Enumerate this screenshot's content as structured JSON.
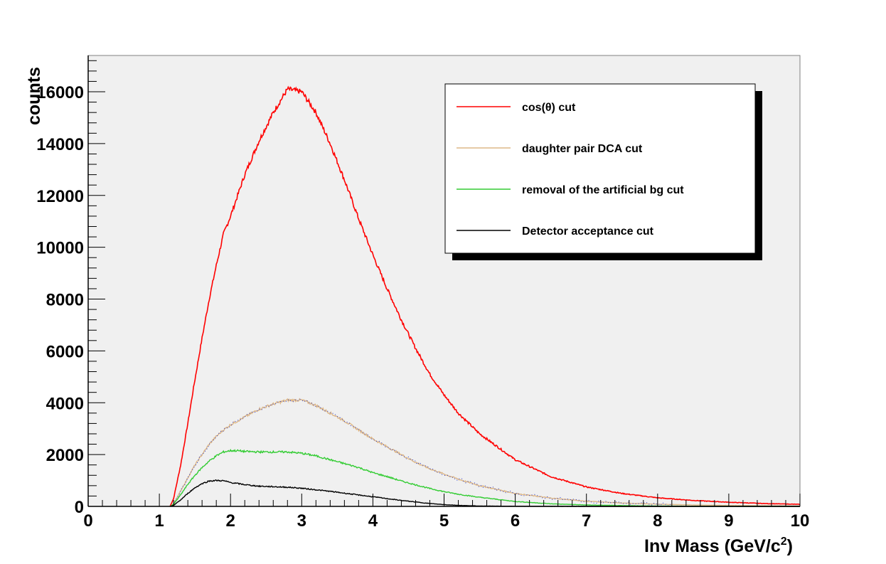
{
  "chart_data": {
    "type": "line",
    "title": "",
    "xlabel": "Inv Mass (GeV/c",
    "xlabel_superscript": "2",
    "xlabel_suffix": ")",
    "ylabel": "counts",
    "xlim": [
      0,
      10
    ],
    "ylim": [
      0,
      17400
    ],
    "x_ticks": [
      "0",
      "1",
      "2",
      "3",
      "4",
      "5",
      "6",
      "7",
      "8",
      "9",
      "10"
    ],
    "y_ticks": [
      "0",
      "2000",
      "4000",
      "6000",
      "8000",
      "10000",
      "12000",
      "14000",
      "16000"
    ],
    "grid": false,
    "legend_position": "top-right",
    "frame_color": "#f0f0f0",
    "x": [
      1.0,
      1.15,
      1.2,
      1.3,
      1.4,
      1.5,
      1.6,
      1.7,
      1.8,
      1.9,
      2.0,
      2.1,
      2.2,
      2.4,
      2.6,
      2.8,
      3.0,
      3.2,
      3.4,
      3.6,
      3.8,
      4.0,
      4.2,
      4.4,
      4.6,
      4.8,
      5.0,
      5.2,
      5.5,
      6.0,
      6.5,
      7.0,
      7.5,
      8.0,
      8.5,
      9.0,
      9.5,
      10.0
    ],
    "series": [
      {
        "name": "cos(θ) cut",
        "color": "#ff0000",
        "values": [
          0,
          0,
          300,
          1600,
          3200,
          4900,
          6500,
          8000,
          9300,
          10500,
          11200,
          12000,
          12800,
          14100,
          15200,
          16100,
          16000,
          15200,
          14000,
          12600,
          11100,
          9700,
          8400,
          7200,
          6100,
          5100,
          4300,
          3600,
          2800,
          1800,
          1150,
          750,
          500,
          330,
          230,
          160,
          110,
          80
        ]
      },
      {
        "name": "daughter pair DCA cut",
        "color": "#deb887",
        "values": [
          0,
          0,
          100,
          600,
          1100,
          1600,
          2000,
          2400,
          2700,
          2950,
          3150,
          3300,
          3450,
          3750,
          3950,
          4100,
          4100,
          3900,
          3600,
          3300,
          2950,
          2600,
          2300,
          2000,
          1700,
          1450,
          1250,
          1050,
          800,
          500,
          320,
          200,
          130,
          85,
          55,
          35,
          25,
          15
        ]
      },
      {
        "name": "removal of the artificial bg cut",
        "color": "#33cc33",
        "values": [
          0,
          0,
          80,
          450,
          850,
          1200,
          1500,
          1750,
          1950,
          2100,
          2150,
          2150,
          2120,
          2100,
          2100,
          2100,
          2050,
          1950,
          1800,
          1650,
          1500,
          1300,
          1150,
          980,
          830,
          690,
          570,
          470,
          350,
          190,
          100,
          55,
          30,
          15,
          8,
          5,
          3,
          2
        ]
      },
      {
        "name": "Detector acceptance cut",
        "color": "#000000",
        "values": [
          0,
          0,
          40,
          250,
          500,
          720,
          880,
          980,
          1000,
          990,
          920,
          880,
          840,
          780,
          760,
          740,
          700,
          640,
          580,
          510,
          440,
          370,
          300,
          230,
          170,
          110,
          70,
          40,
          15,
          5,
          2,
          1,
          0,
          0,
          0,
          0,
          0,
          0
        ]
      }
    ],
    "annotations": {
      "blue_points_near_DCA_curve": true
    }
  }
}
